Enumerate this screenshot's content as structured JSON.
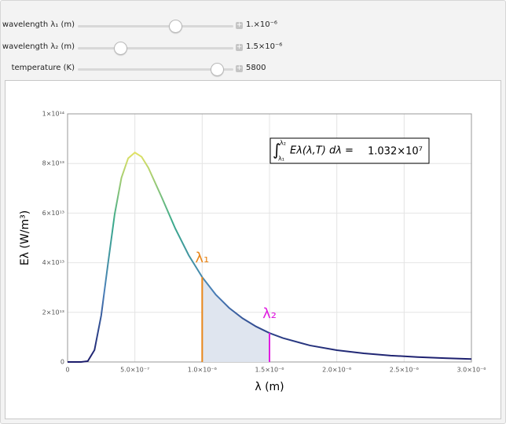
{
  "controls": [
    {
      "label": "wavelength λ₁ (m)",
      "value": "1.×10⁻⁶"
    },
    {
      "label": "wavelength λ₂ (m)",
      "value": "1.5×10⁻⁶"
    },
    {
      "label": "temperature (K)",
      "value": "5800"
    }
  ],
  "chart_data": {
    "type": "line",
    "x_label": "λ (m)",
    "y_label": "Eλ (W/m³)",
    "x": [
      0,
      1e-07,
      1.5e-07,
      2e-07,
      2.5e-07,
      3e-07,
      3.5e-07,
      4e-07,
      4.5e-07,
      5e-07,
      5.5e-07,
      6e-07,
      7e-07,
      8e-07,
      9e-07,
      1e-06,
      1.1e-06,
      1.2e-06,
      1.3e-06,
      1.4e-06,
      1.5e-06,
      1.6e-06,
      1.8e-06,
      2e-06,
      2.2e-06,
      2.4e-06,
      2.6e-06,
      2.8e-06,
      3e-06
    ],
    "values": [
      0,
      630000000.0,
      324000000000.0,
      4810000000000.0,
      18780000000000.0,
      39500000000000.0,
      59600000000000.0,
      74200000000000.0,
      82100000000000.0,
      84400000000000.0,
      82700000000000.0,
      78300000000000.0,
      66300000000000.0,
      53800000000000.0,
      43000000000000.0,
      34200000000000.0,
      27200000000000.0,
      21800000000000.0,
      17600000000000.0,
      14300000000000.0,
      11650000000000.0,
      9620000000000.0,
      6670000000000.0,
      4760000000000.0,
      3480000000000.0,
      2590000000000.0,
      1970000000000.0,
      1530000000000.0,
      1200000000000.0
    ],
    "color_scale": [
      "#1b1b6b",
      "#4a7fb8",
      "#3aaa8c",
      "#e2e264"
    ],
    "fill_color": "#dfe5ef",
    "xlim": [
      0,
      3e-06
    ],
    "ylim": [
      0,
      100000000000000.0
    ],
    "xticks": [
      0,
      {
        "value": 5e-07,
        "label": "5.0×10⁻⁷"
      },
      {
        "value": 1e-06,
        "label": "1.0×10⁻⁶"
      },
      {
        "value": 1.5e-06,
        "label": "1.5×10⁻⁶"
      },
      {
        "value": 2e-06,
        "label": "2.0×10⁻⁶"
      },
      {
        "value": 2.5e-06,
        "label": "2.5×10⁻⁶"
      },
      {
        "value": 3e-06,
        "label": "3.0×10⁻⁶"
      }
    ],
    "yticks": [
      0,
      {
        "value": 20000000000000.0,
        "label": "2×10¹³"
      },
      {
        "value": 40000000000000.0,
        "label": "4×10¹³"
      },
      {
        "value": 60000000000000.0,
        "label": "6×10¹³"
      },
      {
        "value": 80000000000000.0,
        "label": "8×10¹³"
      },
      {
        "value": 100000000000000.0,
        "label": "1×10¹⁴"
      }
    ],
    "grid": true,
    "markers": [
      {
        "label": "λ₁",
        "x": 1e-06,
        "y": 34200000000000.0,
        "color": "#e8861a"
      },
      {
        "label": "λ₂",
        "x": 1.5e-06,
        "y": 11650000000000.0,
        "color": "#e01ee0"
      }
    ],
    "annotation": {
      "symbol": "∫",
      "upper": "λ₂",
      "lower": "λ₁",
      "expression": "Eλ(λ,T) dλ =",
      "value": "1.032×10⁷"
    }
  }
}
